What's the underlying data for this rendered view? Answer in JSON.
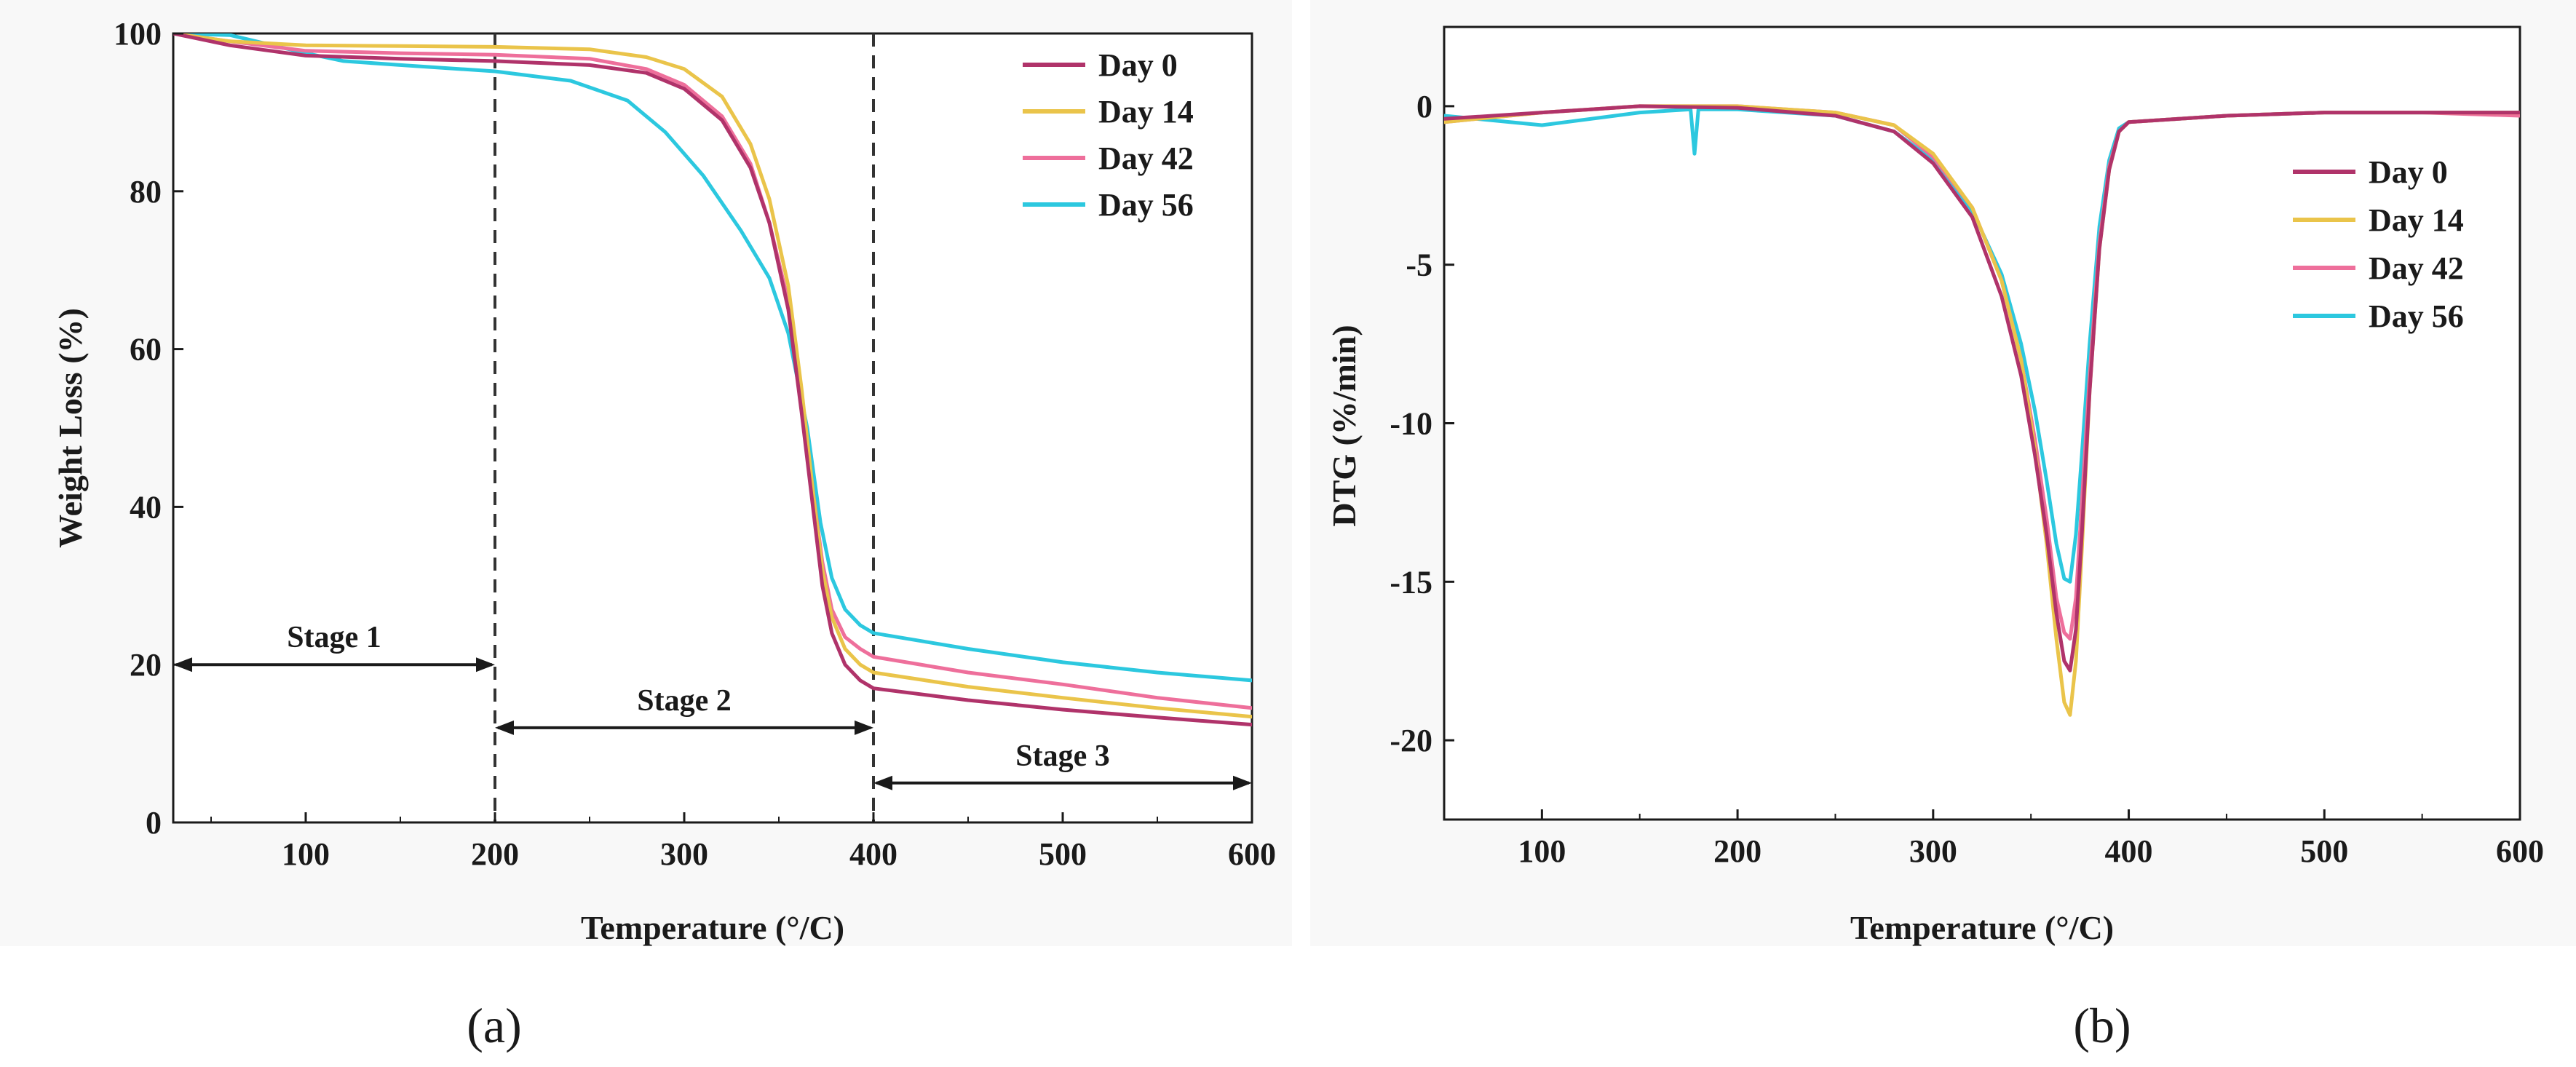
{
  "chart_data": [
    {
      "panel": "a",
      "type": "line",
      "title": "",
      "xlabel": "Temperature (°/C)",
      "ylabel": "Weight Loss (%)",
      "xlim": [
        30,
        600
      ],
      "ylim": [
        0,
        100
      ],
      "xticks": [
        100,
        200,
        300,
        400,
        500,
        600
      ],
      "yticks": [
        0,
        20,
        40,
        60,
        80,
        100
      ],
      "legend_position": "top-right",
      "series": [
        {
          "name": "Day 0",
          "color": "#b0336a",
          "x": [
            30,
            60,
            100,
            150,
            200,
            250,
            280,
            300,
            320,
            335,
            345,
            355,
            362,
            368,
            373,
            378,
            385,
            393,
            400,
            450,
            500,
            550,
            600
          ],
          "y": [
            100,
            98.5,
            97.2,
            96.8,
            96.5,
            96.0,
            95.0,
            93.0,
            89.0,
            83.0,
            76.0,
            65.0,
            52.0,
            40.0,
            30.0,
            24.0,
            20.0,
            18.0,
            17.0,
            15.5,
            14.3,
            13.3,
            12.4
          ]
        },
        {
          "name": "Day 14",
          "color": "#eac44a",
          "x": [
            30,
            60,
            100,
            150,
            200,
            250,
            280,
            300,
            320,
            335,
            345,
            355,
            362,
            368,
            373,
            378,
            385,
            393,
            400,
            450,
            500,
            550,
            600
          ],
          "y": [
            100,
            99.0,
            98.5,
            98.4,
            98.3,
            98.0,
            97.0,
            95.5,
            92.0,
            86.0,
            79.0,
            68.0,
            55.0,
            42.0,
            32.0,
            26.0,
            22.0,
            20.0,
            19.0,
            17.2,
            15.8,
            14.5,
            13.4
          ]
        },
        {
          "name": "Day 42",
          "color": "#ee6f9b",
          "x": [
            30,
            60,
            100,
            150,
            200,
            250,
            280,
            300,
            320,
            335,
            345,
            355,
            362,
            368,
            373,
            378,
            385,
            393,
            400,
            450,
            500,
            550,
            600
          ],
          "y": [
            100,
            99.0,
            97.8,
            97.5,
            97.3,
            96.8,
            95.5,
            93.5,
            89.5,
            83.5,
            76.0,
            66.0,
            53.0,
            42.0,
            33.0,
            27.0,
            23.5,
            22.0,
            21.0,
            19.0,
            17.5,
            15.8,
            14.5
          ]
        },
        {
          "name": "Day 56",
          "color": "#2cc8df",
          "x": [
            30,
            60,
            100,
            120,
            150,
            200,
            240,
            270,
            290,
            310,
            330,
            345,
            355,
            365,
            372,
            378,
            385,
            393,
            400,
            450,
            500,
            550,
            600
          ],
          "y": [
            100,
            99.8,
            97.5,
            96.5,
            96.0,
            95.2,
            94.0,
            91.5,
            87.5,
            82.0,
            75.0,
            69.0,
            62.0,
            50.0,
            38.0,
            31.0,
            27.0,
            25.0,
            24.0,
            22.0,
            20.3,
            19.0,
            18.0
          ]
        }
      ],
      "annotations": [
        {
          "label": "Stage 1",
          "x_from": 30,
          "x_to": 200,
          "y": 20
        },
        {
          "label": "Stage 2",
          "x_from": 200,
          "x_to": 400,
          "y": 12
        },
        {
          "label": "Stage 3",
          "x_from": 400,
          "x_to": 600,
          "y": 5
        }
      ],
      "vlines": [
        200,
        400
      ],
      "caption": "(a)"
    },
    {
      "panel": "b",
      "type": "line",
      "title": "",
      "xlabel": "Temperature (°/C)",
      "ylabel": "DTG (%/min)",
      "xlim": [
        50,
        600
      ],
      "ylim": [
        -22.5,
        2.5
      ],
      "xticks": [
        100,
        200,
        300,
        400,
        500,
        600
      ],
      "yticks": [
        0,
        -5,
        -10,
        -15,
        -20
      ],
      "legend_position": "center-right",
      "series": [
        {
          "name": "Day 0",
          "color": "#b0336a",
          "x": [
            50,
            100,
            150,
            200,
            250,
            280,
            300,
            320,
            335,
            345,
            352,
            358,
            363,
            367,
            370,
            373,
            376,
            380,
            385,
            390,
            395,
            400,
            450,
            500,
            550,
            600
          ],
          "y": [
            -0.4,
            -0.2,
            0.0,
            -0.05,
            -0.3,
            -0.8,
            -1.8,
            -3.5,
            -6.0,
            -8.5,
            -11.0,
            -13.5,
            -16.0,
            -17.5,
            -17.8,
            -16.5,
            -13.5,
            -9.0,
            -4.5,
            -2.0,
            -0.8,
            -0.5,
            -0.3,
            -0.2,
            -0.2,
            -0.2
          ]
        },
        {
          "name": "Day 14",
          "color": "#eac44a",
          "x": [
            50,
            100,
            150,
            200,
            250,
            280,
            300,
            320,
            335,
            345,
            352,
            358,
            363,
            367,
            370,
            373,
            376,
            380,
            385,
            390,
            395,
            400,
            450,
            500,
            550,
            600
          ],
          "y": [
            -0.5,
            -0.2,
            0.0,
            0.0,
            -0.2,
            -0.6,
            -1.5,
            -3.2,
            -5.5,
            -8.0,
            -10.8,
            -13.8,
            -16.8,
            -18.8,
            -19.2,
            -17.5,
            -14.0,
            -9.0,
            -4.5,
            -2.0,
            -0.8,
            -0.5,
            -0.3,
            -0.2,
            -0.2,
            -0.2
          ]
        },
        {
          "name": "Day 42",
          "color": "#ee6f9b",
          "x": [
            50,
            100,
            150,
            200,
            250,
            280,
            300,
            320,
            335,
            345,
            352,
            358,
            363,
            367,
            370,
            373,
            376,
            380,
            385,
            390,
            395,
            400,
            450,
            500,
            550,
            600
          ],
          "y": [
            -0.5,
            -0.2,
            0.0,
            0.0,
            -0.2,
            -0.6,
            -1.6,
            -3.2,
            -5.5,
            -8.0,
            -10.5,
            -13.0,
            -15.5,
            -16.6,
            -16.8,
            -15.5,
            -12.5,
            -8.5,
            -4.3,
            -1.9,
            -0.8,
            -0.5,
            -0.3,
            -0.2,
            -0.2,
            -0.3
          ]
        },
        {
          "name": "Day 56",
          "color": "#2cc8df",
          "x": [
            50,
            100,
            150,
            176,
            178,
            180,
            200,
            250,
            280,
            300,
            320,
            335,
            345,
            352,
            358,
            363,
            367,
            370,
            373,
            376,
            380,
            385,
            390,
            395,
            400,
            450,
            500,
            550,
            600
          ],
          "y": [
            -0.3,
            -0.6,
            -0.2,
            -0.1,
            -1.5,
            -0.1,
            -0.1,
            -0.3,
            -0.8,
            -1.7,
            -3.3,
            -5.3,
            -7.5,
            -9.6,
            -11.8,
            -13.8,
            -14.9,
            -15.0,
            -13.5,
            -11.0,
            -7.5,
            -3.8,
            -1.7,
            -0.7,
            -0.5,
            -0.3,
            -0.2,
            -0.2,
            -0.2
          ]
        }
      ],
      "caption": "(b)"
    }
  ]
}
